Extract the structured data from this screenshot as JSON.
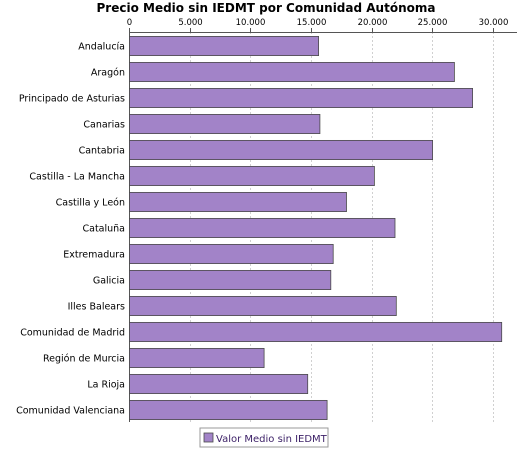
{
  "chart_data": {
    "type": "bar",
    "orientation": "horizontal",
    "title": "Precio Medio sin IEDMT por Comunidad Autónoma",
    "xlabel": "",
    "ylabel": "",
    "xlim": [
      0,
      32000
    ],
    "ticks": [
      0,
      5000,
      10000,
      15000,
      20000,
      25000,
      30000
    ],
    "tick_labels": [
      "0",
      "5.000",
      "10.000",
      "15.000",
      "20.000",
      "25.000",
      "30.000"
    ],
    "axis_position": "top",
    "grid": true,
    "legend_position": "bottom",
    "bar_color": "#a283c8",
    "bar_edge_color": "#4a4a4a",
    "categories": [
      "Andalucía",
      "Aragón",
      "Principado de Asturias",
      "Canarias",
      "Cantabria",
      "Castilla - La Mancha",
      "Castilla y León",
      "Cataluña",
      "Extremadura",
      "Galicia",
      "Illes Balears",
      "Comunidad de Madrid",
      "Región de Murcia",
      "La Rioja",
      "Comunidad Valenciana"
    ],
    "series": [
      {
        "name": "Valor Medio sin IEDMT",
        "values": [
          15600,
          26800,
          28300,
          15700,
          25000,
          20200,
          17900,
          21900,
          16800,
          16600,
          22000,
          30700,
          11100,
          14700,
          16300
        ]
      }
    ]
  }
}
